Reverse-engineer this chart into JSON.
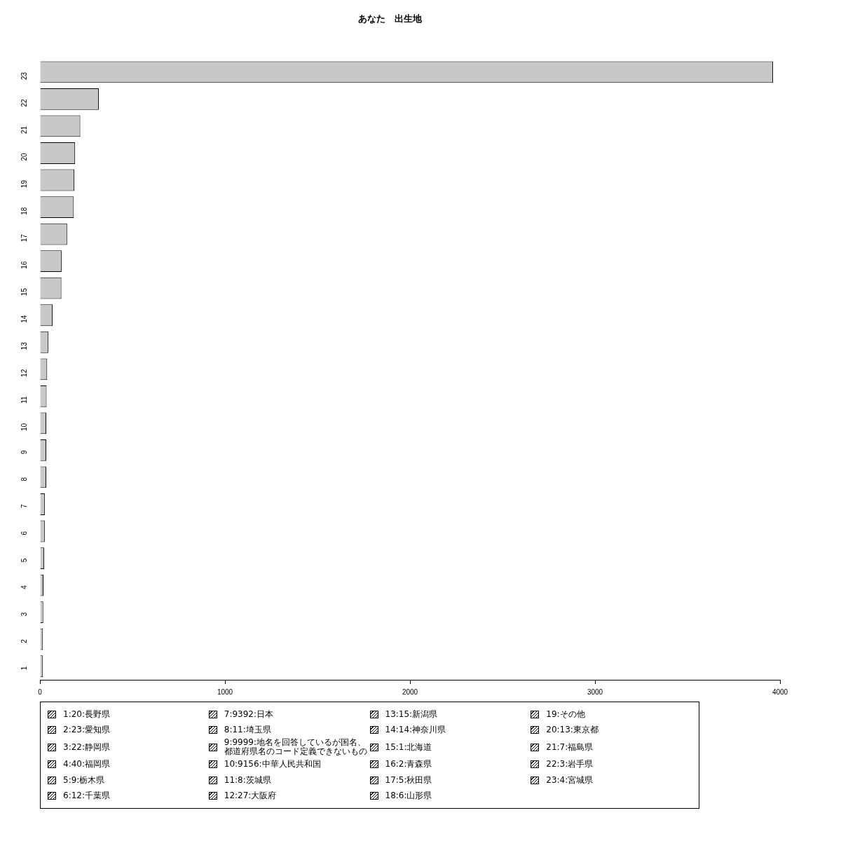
{
  "chart_data": {
    "type": "bar",
    "orientation": "horizontal",
    "title": "あなた　出生地",
    "categories": [
      "23",
      "22",
      "21",
      "20",
      "19",
      "18",
      "17",
      "16",
      "15",
      "14",
      "13",
      "12",
      "11",
      "10",
      "9",
      "8",
      "7",
      "6",
      "5",
      "4",
      "3",
      "2",
      "1"
    ],
    "values": [
      3962,
      318,
      218,
      190,
      186,
      183,
      147,
      117,
      116,
      68,
      45,
      39,
      36,
      34,
      34,
      34,
      27,
      26,
      23,
      19,
      18,
      16,
      16
    ],
    "color": "#c8c8c8",
    "xlim": [
      0,
      4000
    ],
    "xticks": [
      0,
      1000,
      2000,
      3000,
      4000
    ],
    "annotations": [
      "1:20:長野県",
      "2:23:愛知県",
      "3:22:静岡県",
      "4:40:福岡県",
      "5:9:栃木県",
      "6:12:千葉県",
      "7:9392:日本",
      "8:11:埼玉県",
      "9:9999:地名を回答しているが国名、都道府県名のコード定義できないもの",
      "10:9156:中華人民共和国",
      "11:8:茨城県",
      "12:27:大阪府",
      "13:15:新潟県",
      "14:14:神奈川県",
      "15:1:北海道",
      "16:2:青森県",
      "17:5:秋田県",
      "18:6:山形県",
      "19:その他",
      "20:13:東京都",
      "21:7:福島県",
      "22:3:岩手県",
      "23:4:宮城県"
    ]
  }
}
